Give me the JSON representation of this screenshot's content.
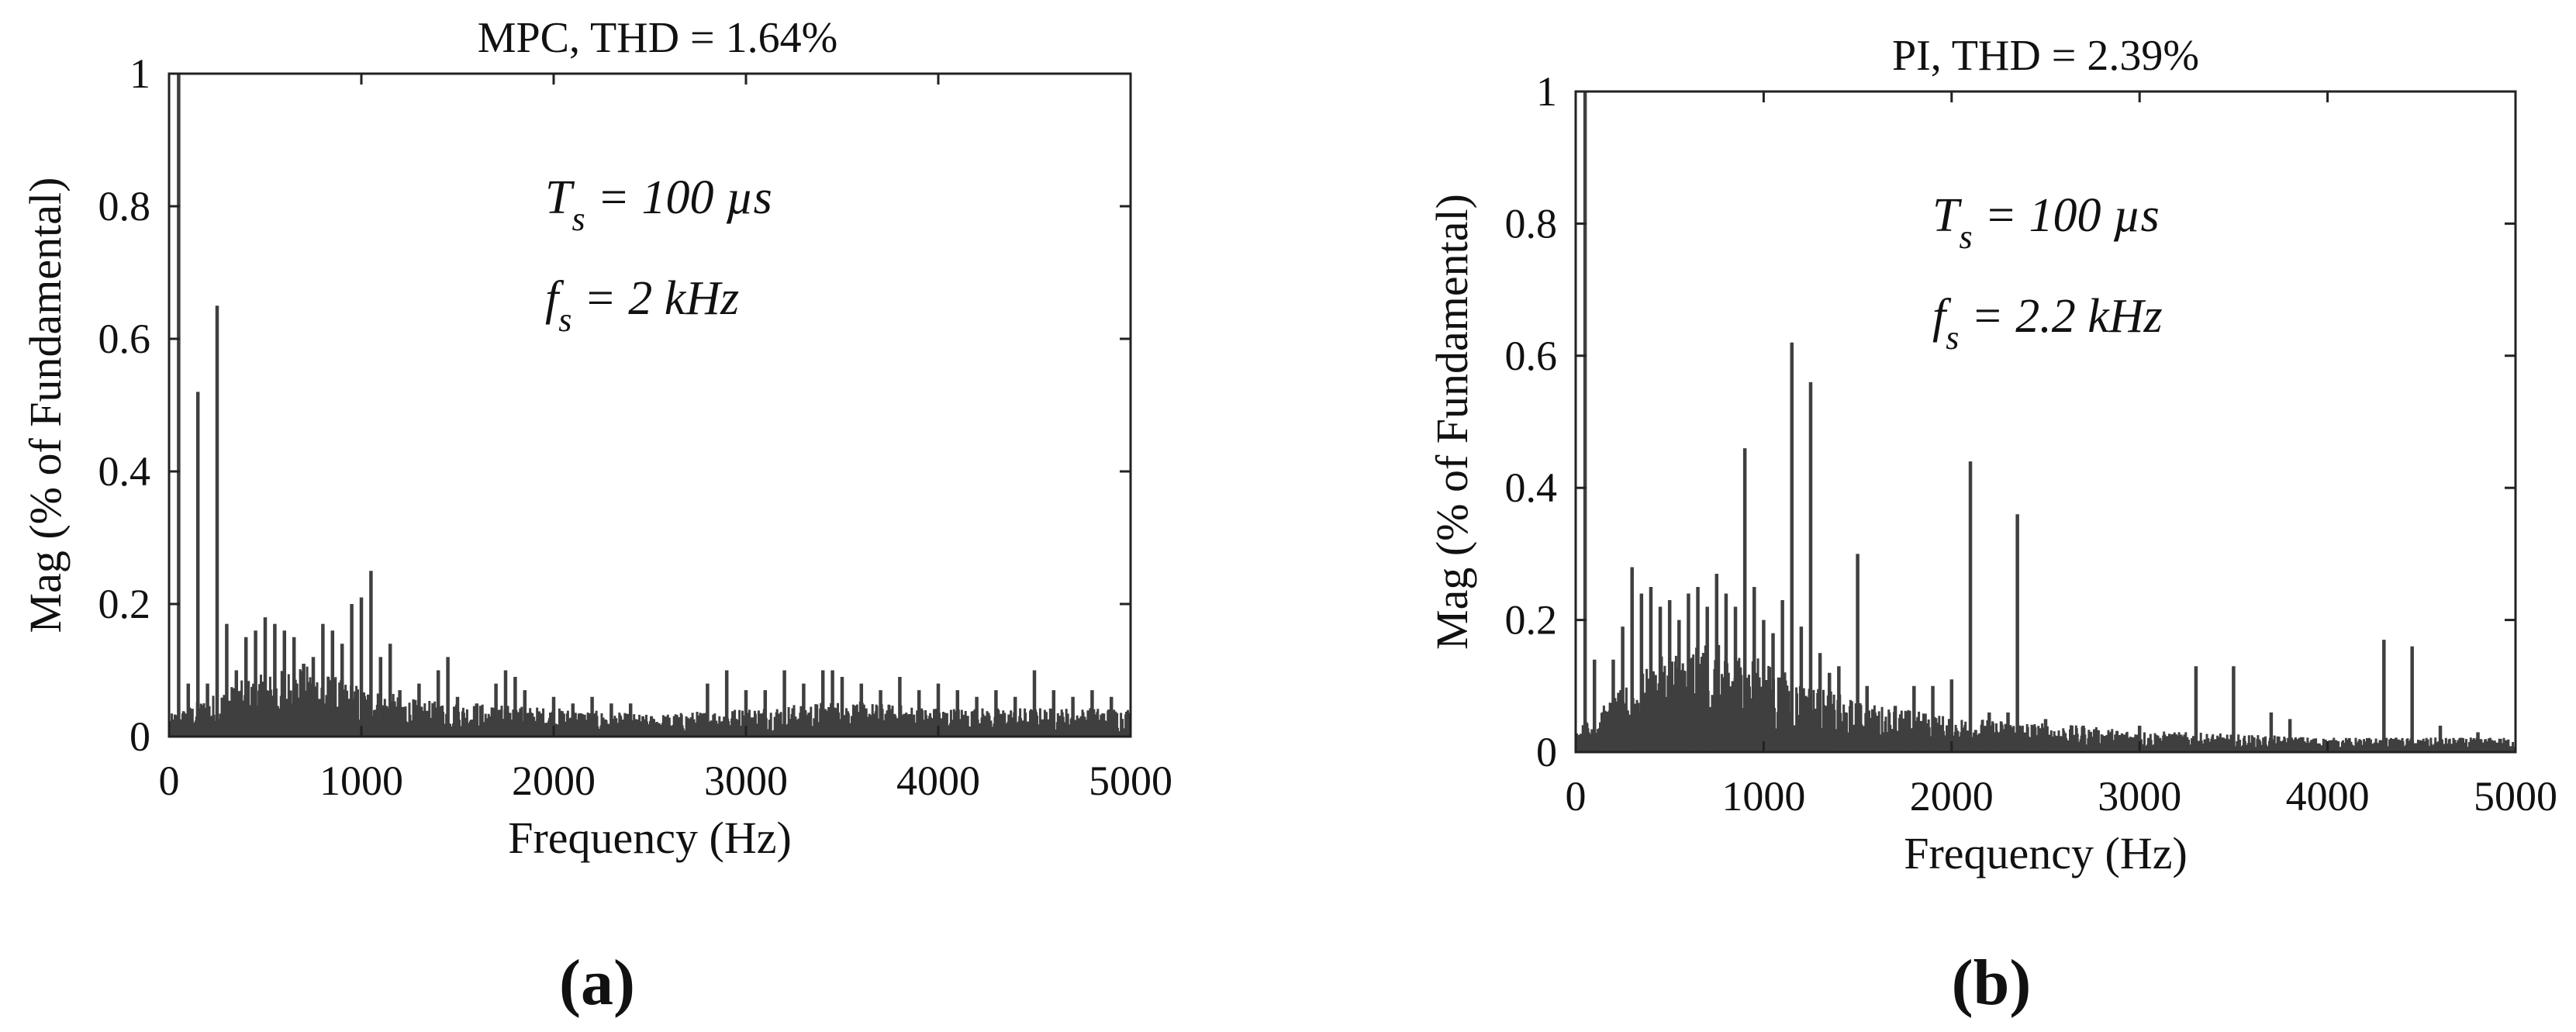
{
  "chart_data": [
    {
      "type": "bar",
      "panel_label": "(a)",
      "title": "MPC, THD = 1.64%",
      "xlabel": "Frequency (Hz)",
      "ylabel": "Mag (% of Fundamental)",
      "xlim": [
        0,
        5000
      ],
      "ylim": [
        0,
        1
      ],
      "xticks": [
        "0",
        "1000",
        "2000",
        "3000",
        "4000",
        "5000"
      ],
      "yticks": [
        "0",
        "0.2",
        "0.4",
        "0.6",
        "0.8",
        "1"
      ],
      "annotations": [
        {
          "symbol": "T",
          "sub": "s",
          "text": " = 100 µs"
        },
        {
          "symbol": "f",
          "sub": "s",
          "text": " = 2 kHz"
        }
      ],
      "bar_color": "#3f3f3f",
      "peaks": [
        [
          50,
          1.0
        ],
        [
          100,
          0.08
        ],
        [
          150,
          0.52
        ],
        [
          200,
          0.08
        ],
        [
          250,
          0.65
        ],
        [
          300,
          0.17
        ],
        [
          350,
          0.1
        ],
        [
          400,
          0.15
        ],
        [
          450,
          0.16
        ],
        [
          500,
          0.18
        ],
        [
          550,
          0.17
        ],
        [
          600,
          0.16
        ],
        [
          650,
          0.15
        ],
        [
          700,
          0.11
        ],
        [
          750,
          0.12
        ],
        [
          800,
          0.17
        ],
        [
          850,
          0.16
        ],
        [
          900,
          0.14
        ],
        [
          950,
          0.2
        ],
        [
          1000,
          0.21
        ],
        [
          1050,
          0.25
        ],
        [
          1100,
          0.12
        ],
        [
          1150,
          0.14
        ],
        [
          1200,
          0.07
        ],
        [
          1300,
          0.08
        ],
        [
          1400,
          0.1
        ],
        [
          1450,
          0.12
        ],
        [
          1500,
          0.06
        ],
        [
          1600,
          0.05
        ],
        [
          1700,
          0.08
        ],
        [
          1750,
          0.1
        ],
        [
          1800,
          0.09
        ],
        [
          1850,
          0.07
        ],
        [
          2000,
          0.06
        ],
        [
          2100,
          0.05
        ],
        [
          2200,
          0.06
        ],
        [
          2300,
          0.05
        ],
        [
          2400,
          0.05
        ],
        [
          2800,
          0.08
        ],
        [
          2900,
          0.1
        ],
        [
          3000,
          0.07
        ],
        [
          3100,
          0.07
        ],
        [
          3200,
          0.1
        ],
        [
          3300,
          0.08
        ],
        [
          3400,
          0.1
        ],
        [
          3450,
          0.1
        ],
        [
          3500,
          0.09
        ],
        [
          3600,
          0.08
        ],
        [
          3700,
          0.07
        ],
        [
          3800,
          0.09
        ],
        [
          3900,
          0.07
        ],
        [
          4000,
          0.08
        ],
        [
          4100,
          0.07
        ],
        [
          4200,
          0.06
        ],
        [
          4300,
          0.07
        ],
        [
          4400,
          0.06
        ],
        [
          4500,
          0.1
        ],
        [
          4600,
          0.07
        ],
        [
          4700,
          0.06
        ],
        [
          4800,
          0.07
        ],
        [
          4900,
          0.06
        ]
      ],
      "noise_floor": [
        [
          0,
          0.03
        ],
        [
          400,
          0.08
        ],
        [
          700,
          0.1
        ],
        [
          1000,
          0.07
        ],
        [
          1300,
          0.05
        ],
        [
          2000,
          0.04
        ],
        [
          2500,
          0.03
        ],
        [
          3000,
          0.04
        ],
        [
          3500,
          0.05
        ],
        [
          4000,
          0.04
        ],
        [
          5000,
          0.04
        ]
      ]
    },
    {
      "type": "bar",
      "panel_label": "(b)",
      "title": "PI, THD = 2.39%",
      "xlabel": "Frequency (Hz)",
      "ylabel": "Mag (% of Fundamental)",
      "xlim": [
        0,
        5000
      ],
      "ylim": [
        0,
        1
      ],
      "xticks": [
        "0",
        "1000",
        "2000",
        "3000",
        "4000",
        "5000"
      ],
      "yticks": [
        "0",
        "0.2",
        "0.4",
        "0.6",
        "0.8",
        "1"
      ],
      "annotations": [
        {
          "symbol": "T",
          "sub": "s",
          "text": " = 100 µs"
        },
        {
          "symbol": "f",
          "sub": "s",
          "text": " = 2.2 kHz"
        }
      ],
      "bar_color": "#3f3f3f",
      "peaks": [
        [
          50,
          1.0
        ],
        [
          100,
          0.14
        ],
        [
          200,
          0.14
        ],
        [
          250,
          0.19
        ],
        [
          300,
          0.28
        ],
        [
          350,
          0.24
        ],
        [
          400,
          0.25
        ],
        [
          450,
          0.22
        ],
        [
          500,
          0.23
        ],
        [
          550,
          0.2
        ],
        [
          600,
          0.24
        ],
        [
          650,
          0.25
        ],
        [
          700,
          0.22
        ],
        [
          750,
          0.27
        ],
        [
          800,
          0.24
        ],
        [
          850,
          0.22
        ],
        [
          900,
          0.46
        ],
        [
          950,
          0.25
        ],
        [
          1000,
          0.2
        ],
        [
          1050,
          0.18
        ],
        [
          1100,
          0.23
        ],
        [
          1150,
          0.62
        ],
        [
          1200,
          0.19
        ],
        [
          1250,
          0.56
        ],
        [
          1300,
          0.15
        ],
        [
          1350,
          0.12
        ],
        [
          1400,
          0.13
        ],
        [
          1500,
          0.3
        ],
        [
          1550,
          0.1
        ],
        [
          1700,
          0.07
        ],
        [
          1800,
          0.1
        ],
        [
          1900,
          0.1
        ],
        [
          2000,
          0.11
        ],
        [
          2100,
          0.44
        ],
        [
          2200,
          0.06
        ],
        [
          2300,
          0.06
        ],
        [
          2350,
          0.36
        ],
        [
          2500,
          0.05
        ],
        [
          2700,
          0.04
        ],
        [
          3000,
          0.04
        ],
        [
          3300,
          0.13
        ],
        [
          3500,
          0.13
        ],
        [
          3700,
          0.06
        ],
        [
          3800,
          0.05
        ],
        [
          4300,
          0.17
        ],
        [
          4450,
          0.16
        ],
        [
          4600,
          0.04
        ],
        [
          4800,
          0.03
        ]
      ],
      "noise_floor": [
        [
          0,
          0.03
        ],
        [
          300,
          0.1
        ],
        [
          600,
          0.16
        ],
        [
          900,
          0.14
        ],
        [
          1200,
          0.1
        ],
        [
          1500,
          0.07
        ],
        [
          2000,
          0.05
        ],
        [
          2500,
          0.04
        ],
        [
          3000,
          0.03
        ],
        [
          4000,
          0.02
        ],
        [
          5000,
          0.02
        ]
      ]
    }
  ]
}
